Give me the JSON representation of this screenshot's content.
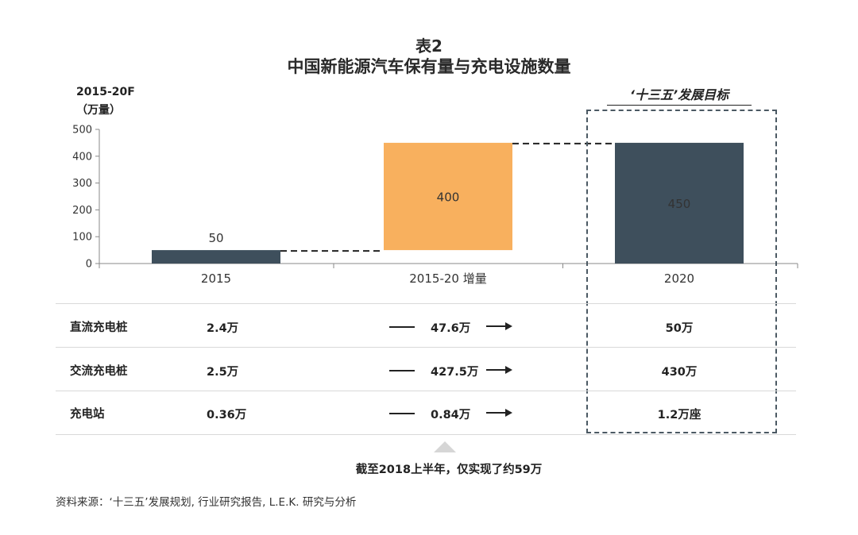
{
  "title": {
    "line1": "表2",
    "line2": "中国新能源汽车保有量与充电设施数量"
  },
  "unit": {
    "line1": "2015-20F",
    "line2": "（万量）"
  },
  "plan_label": "‘十三五’发展目标",
  "chart_data": {
    "type": "bar",
    "subtype": "waterfall",
    "categories": [
      "2015",
      "2015-20 增量",
      "2020"
    ],
    "bars": [
      {
        "category": "2015",
        "base": 0,
        "value": 50,
        "label": "50",
        "color": "#3e4f5c"
      },
      {
        "category": "2015-20 增量",
        "base": 50,
        "value": 400,
        "label": "400",
        "color": "#f8b05e"
      },
      {
        "category": "2020",
        "base": 0,
        "value": 450,
        "label": "450",
        "color": "#3e4f5c"
      }
    ],
    "ylim": [
      0,
      500
    ],
    "yticks": [
      0,
      100,
      200,
      300,
      400,
      500
    ],
    "connectors": "dashed",
    "grid": false
  },
  "table": {
    "rows": [
      {
        "label": "直流充电桩",
        "v2015": "2.4万",
        "increase": "47.6万",
        "v2020": "50万"
      },
      {
        "label": "交流充电桩",
        "v2015": "2.5万",
        "increase": "427.5万",
        "v2020": "430万"
      },
      {
        "label": "充电站",
        "v2015": "0.36万",
        "increase": "0.84万",
        "v2020": "1.2万座"
      }
    ]
  },
  "note": "截至2018上半年，仅实现了约59万",
  "source": "资料来源：‘十三五’发展规划, 行业研究报告, L.E.K. 研究与分析",
  "colors": {
    "dark_bar": "#3e4f5c",
    "orange_bar": "#f8b05e",
    "box_border": "#4b5963"
  }
}
